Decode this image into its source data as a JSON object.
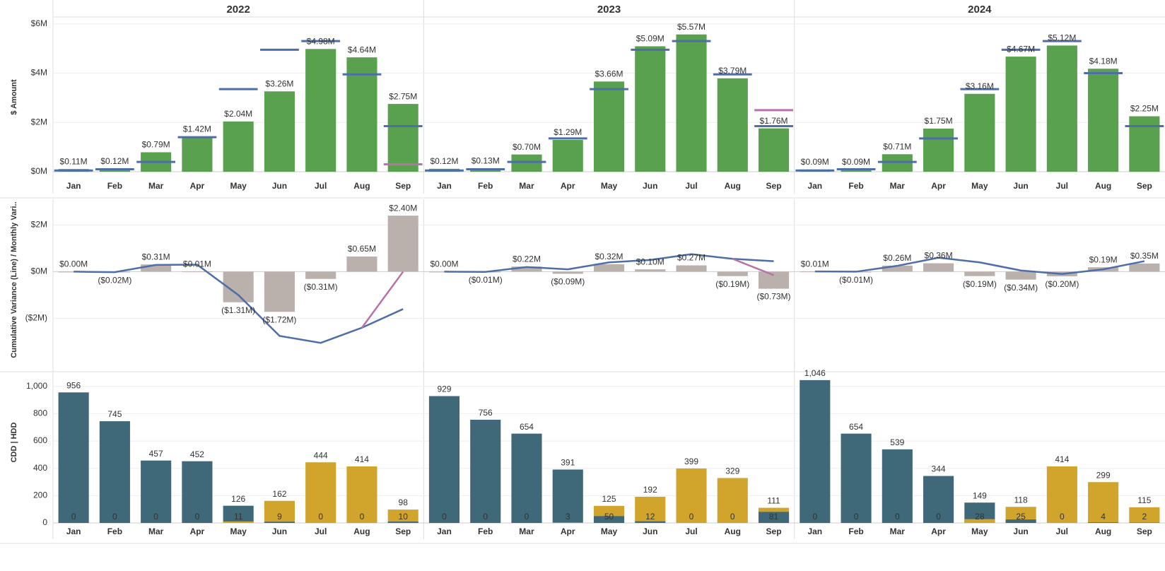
{
  "chart_data": [
    {
      "type": "bar",
      "facets": [
        "2022",
        "2023",
        "2024"
      ],
      "ylabel": "$ Amount",
      "categories": [
        "Jan",
        "Feb",
        "Mar",
        "Apr",
        "May",
        "Jun",
        "Jul",
        "Aug",
        "Sep"
      ],
      "ylim": [
        -0.2,
        6.25
      ],
      "grid": true,
      "yticks": [
        {
          "value": 0,
          "label": "$0M"
        },
        {
          "value": 2,
          "label": "$2M"
        },
        {
          "value": 4,
          "label": "$4M"
        },
        {
          "value": 6,
          "label": "$6M"
        }
      ],
      "series": [
        {
          "mark": "bar",
          "color": "#59a14f",
          "values": [
            [
              0.11,
              0.12,
              0.79,
              1.42,
              2.04,
              3.26,
              4.98,
              4.64,
              2.75
            ],
            [
              0.12,
              0.13,
              0.7,
              1.29,
              3.66,
              5.09,
              5.57,
              3.79,
              1.76
            ],
            [
              0.09,
              0.09,
              0.71,
              1.75,
              3.16,
              4.67,
              5.12,
              4.18,
              2.25
            ]
          ],
          "value_labels": [
            [
              "$0.11M",
              "$0.12M",
              "$0.79M",
              "$1.42M",
              "$2.04M",
              "$3.26M",
              "$4.98M",
              "$4.64M",
              "$2.75M"
            ],
            [
              "$0.12M",
              "$0.13M",
              "$0.70M",
              "$1.29M",
              "$3.66M",
              "$5.09M",
              "$5.57M",
              "$3.79M",
              "$1.76M"
            ],
            [
              "$0.09M",
              "$0.09M",
              "$0.71M",
              "$1.75M",
              "$3.16M",
              "$4.67M",
              "$5.12M",
              "$4.18M",
              "$2.25M"
            ]
          ]
        },
        {
          "mark": "tick",
          "color": "#4e6ea8",
          "values": [
            [
              0.05,
              0.1,
              0.4,
              1.4,
              3.35,
              4.95,
              5.3,
              3.95,
              1.85
            ],
            [
              0.05,
              0.1,
              0.4,
              1.35,
              3.35,
              4.95,
              5.3,
              3.95,
              1.85
            ],
            [
              0.05,
              0.1,
              0.4,
              1.35,
              3.35,
              4.95,
              5.3,
              4.0,
              1.85
            ]
          ]
        },
        {
          "mark": "tick",
          "color": "#b872a8",
          "values": [
            [
              null,
              null,
              null,
              null,
              null,
              null,
              null,
              null,
              0.3
            ],
            [
              null,
              null,
              null,
              null,
              null,
              null,
              null,
              null,
              2.5
            ],
            [
              null,
              null,
              null,
              null,
              null,
              null,
              null,
              null,
              null
            ]
          ]
        }
      ]
    },
    {
      "type": "bar",
      "ylabel": "Cumulative Variance (Line) / Monthly Vari..",
      "ylim": [
        -3.8,
        3.1
      ],
      "grid": true,
      "yticks": [
        {
          "value": -2,
          "label": "($2M)"
        },
        {
          "value": 0,
          "label": "$0M"
        },
        {
          "value": 2,
          "label": "$2M"
        }
      ],
      "series": [
        {
          "mark": "bar",
          "color": "#bab0ac",
          "values": [
            [
              0.0,
              -0.02,
              0.31,
              0.01,
              -1.31,
              -1.72,
              -0.31,
              0.65,
              2.4
            ],
            [
              0.0,
              -0.01,
              0.22,
              -0.09,
              0.32,
              0.1,
              0.27,
              -0.19,
              -0.73
            ],
            [
              0.01,
              -0.01,
              0.26,
              0.36,
              -0.19,
              -0.34,
              -0.2,
              0.19,
              0.35
            ]
          ],
          "value_labels": [
            [
              "$0.00M",
              "($0.02M)",
              "$0.31M",
              "$0.01M",
              "($1.31M)",
              "($1.72M)",
              "($0.31M)",
              "$0.65M",
              "$2.40M"
            ],
            [
              "$0.00M",
              "($0.01M)",
              "$0.22M",
              "($0.09M)",
              "$0.32M",
              "$0.10M",
              "$0.27M",
              "($0.19M)",
              "($0.73M)"
            ],
            [
              "$0.01M",
              "($0.01M)",
              "$0.26M",
              "$0.36M",
              "($0.19M)",
              "($0.34M)",
              "($0.20M)",
              "$0.19M",
              "$0.35M"
            ]
          ]
        },
        {
          "mark": "line",
          "color": "#4e6ea8",
          "values": [
            [
              0.0,
              -0.02,
              0.29,
              0.3,
              -1.0,
              -2.75,
              -3.05,
              -2.4,
              -1.6
            ],
            [
              0.0,
              -0.01,
              0.2,
              0.1,
              0.4,
              0.5,
              0.75,
              0.55,
              0.45
            ],
            [
              0.01,
              0.0,
              0.25,
              0.6,
              0.4,
              0.05,
              -0.1,
              0.1,
              0.45
            ]
          ]
        },
        {
          "mark": "line",
          "color": "#b872a8",
          "values": [
            [
              null,
              null,
              null,
              null,
              null,
              null,
              null,
              -2.4,
              0.0
            ],
            [
              null,
              null,
              null,
              null,
              null,
              null,
              null,
              0.55,
              -0.15
            ],
            [
              null,
              null,
              null,
              null,
              null,
              null,
              null,
              null,
              null
            ]
          ]
        }
      ]
    },
    {
      "type": "bar",
      "ylabel": "CDD | HDD",
      "categories": [
        "Jan",
        "Feb",
        "Mar",
        "Apr",
        "May",
        "Jun",
        "Jul",
        "Aug",
        "Sep"
      ],
      "ylim": [
        0,
        1180
      ],
      "grid": true,
      "yticks": [
        0,
        200,
        400,
        600,
        800,
        {
          "value": 1000,
          "label": "1,000"
        }
      ],
      "series": [
        {
          "mark": "overlap",
          "color": "#3f6878",
          "values": [
            [
              956,
              745,
              457,
              452,
              126,
              9,
              0,
              0,
              10
            ],
            [
              929,
              756,
              654,
              391,
              50,
              12,
              0,
              0,
              81
            ],
            [
              1046,
              654,
              539,
              344,
              149,
              25,
              0,
              4,
              2
            ]
          ],
          "value_labels": [
            [
              "956",
              "745",
              "457",
              "452",
              "126",
              "9",
              "0",
              "0",
              "10"
            ],
            [
              "929",
              "756",
              "654",
              "391",
              "50",
              "12",
              "0",
              "0",
              "81"
            ],
            [
              "1,046",
              "654",
              "539",
              "344",
              "149",
              "25",
              "0",
              "4",
              "2"
            ]
          ]
        },
        {
          "mark": "overlap",
          "color": "#d1a42c",
          "values": [
            [
              0,
              0,
              0,
              0,
              11,
              162,
              444,
              414,
              98
            ],
            [
              0,
              0,
              0,
              3,
              125,
              192,
              399,
              329,
              111
            ],
            [
              0,
              0,
              0,
              0,
              28,
              118,
              414,
              299,
              115
            ]
          ],
          "value_labels": [
            [
              "0",
              "0",
              "0",
              "0",
              "11",
              "162",
              "444",
              "414",
              "98"
            ],
            [
              "0",
              "0",
              "0",
              "3",
              "125",
              "192",
              "399",
              "329",
              "111"
            ],
            [
              "0",
              "0",
              "0",
              "0",
              "28",
              "118",
              "414",
              "299",
              "115"
            ]
          ]
        }
      ]
    }
  ]
}
